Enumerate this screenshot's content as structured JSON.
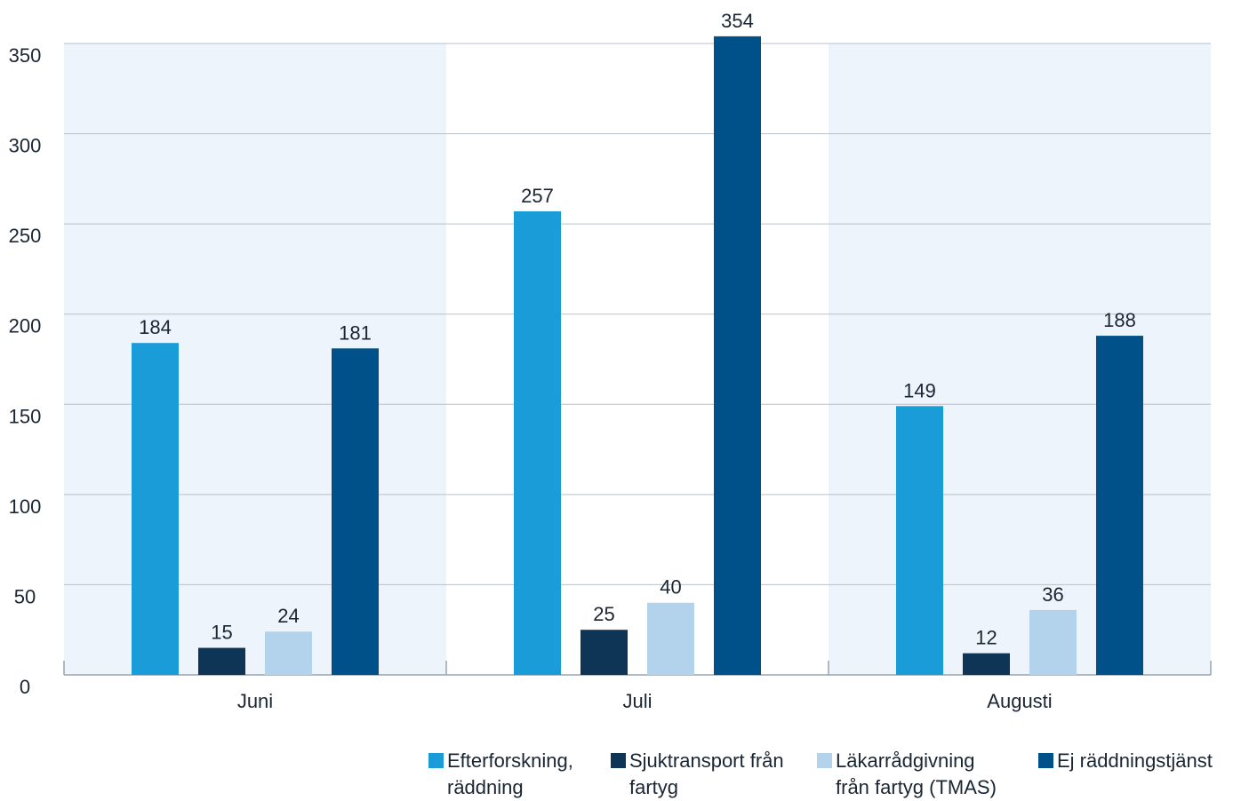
{
  "chart_data": {
    "type": "bar",
    "categories": [
      "Juni",
      "Juli",
      "Augusti"
    ],
    "series": [
      {
        "name": "Efterforskning, räddning",
        "color": "#1a9cd8",
        "values": [
          184,
          257,
          149
        ]
      },
      {
        "name": "Sjuktransport från fartyg",
        "color": "#0f3556",
        "values": [
          15,
          25,
          12
        ]
      },
      {
        "name": "Läkarrådgivning från fartyg (TMAS)",
        "color": "#b3d2ec",
        "values": [
          24,
          40,
          36
        ]
      },
      {
        "name": "Ej räddningstjänst",
        "color": "#005189",
        "values": [
          181,
          354,
          188
        ]
      }
    ],
    "y_ticks": [
      "0",
      "50",
      "100",
      "150",
      "200",
      "250",
      "300",
      "350"
    ],
    "ylim": [
      0,
      350
    ],
    "grid": true,
    "legend_position": "bottom-right",
    "band_color": "#eef4fb",
    "grid_color": "#b9c0c8"
  },
  "legend": {
    "items": [
      {
        "line1": "Efterforskning,",
        "line2": "räddning"
      },
      {
        "line1": "Sjuktransport från",
        "line2": "fartyg"
      },
      {
        "line1": "Läkarrådgivning",
        "line2": "från fartyg (TMAS)"
      },
      {
        "line1": "Ej räddningstjänst",
        "line2": ""
      }
    ]
  }
}
